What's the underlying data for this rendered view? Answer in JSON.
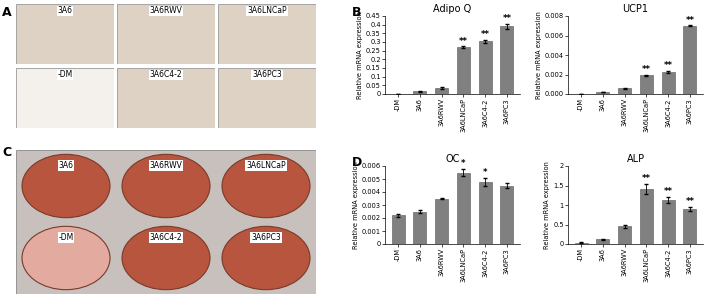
{
  "panels": [
    {
      "panel_label": "A",
      "type": "image",
      "labels": [
        "3A6",
        "3A6RWV",
        "3A6LNCaP",
        "-DM",
        "3A6C4-2",
        "3A6PC3"
      ]
    },
    {
      "panel_label": "C",
      "type": "image",
      "labels": [
        "3A6",
        "3A6RWV",
        "3A6LNCaP",
        "-DM",
        "3A6C4-2",
        "3A6PC3"
      ]
    }
  ],
  "chart_data": [
    {
      "panel_label": "B",
      "type": "bar",
      "title": "Adipo Q",
      "y_label": "Relative mRNA expression",
      "categories": [
        "-DM",
        "3A6",
        "3A6RWV",
        "3A6LNCaP",
        "3A6C4-2",
        "3A6PC3"
      ],
      "values": [
        0.0,
        0.015,
        0.035,
        0.27,
        0.305,
        0.39
      ],
      "errors": [
        0.0,
        0.003,
        0.005,
        0.005,
        0.008,
        0.015
      ],
      "annotations": [
        null,
        null,
        null,
        "**",
        "**",
        "**"
      ],
      "color": "#808080",
      "ylim": [
        0,
        0.45
      ],
      "yticks": [
        0,
        0.05,
        0.1,
        0.15,
        0.2,
        0.25,
        0.3,
        0.35,
        0.4,
        0.45
      ]
    },
    {
      "type": "bar",
      "title": "UCP1",
      "y_label": "Relative mRNA expression",
      "categories": [
        "-DM",
        "3A6",
        "3A6RWV",
        "3A6LNCaP",
        "3A6C4-2",
        "3A6PC3"
      ],
      "values": [
        0.0,
        0.0002,
        0.0006,
        0.0019,
        0.0023,
        0.007
      ],
      "errors": [
        0.0,
        3e-05,
        5e-05,
        0.0001,
        0.0001,
        5e-05
      ],
      "annotations": [
        null,
        null,
        null,
        "**",
        "**",
        "**"
      ],
      "color": "#808080",
      "ylim": [
        0,
        0.008
      ],
      "yticks": [
        {
          "value": 0,
          "label": "0.000"
        },
        0.002,
        0.004,
        0.006,
        0.008
      ]
    },
    {
      "panel_label": "D",
      "type": "bar",
      "title": "OC",
      "y_label": "Relative mRNA expression",
      "categories": [
        "-DM",
        "3A6",
        "3A6RWV",
        "3A6LNCaP",
        "3A6C4-2",
        "3A6PC3"
      ],
      "values": [
        0.0022,
        0.0025,
        0.0035,
        0.0055,
        0.0048,
        0.0045
      ],
      "errors": [
        0.0001,
        0.00015,
        5e-05,
        0.0003,
        0.0003,
        0.0002
      ],
      "annotations": [
        null,
        null,
        null,
        "*",
        "*",
        null
      ],
      "color": "#808080",
      "ylim": [
        0,
        0.006
      ],
      "yticks": [
        0,
        0.001,
        0.002,
        0.003,
        0.004,
        0.005,
        0.006
      ]
    },
    {
      "type": "bar",
      "title": "ALP",
      "y_label": "Relative mRNA expression",
      "categories": [
        "-DM",
        "3A6",
        "3A6RWV",
        "3A6LNCaP",
        "3A6C4-2",
        "3A6PC3"
      ],
      "values": [
        0.03,
        0.12,
        0.45,
        1.42,
        1.13,
        0.9
      ],
      "errors": [
        0.01,
        0.02,
        0.03,
        0.13,
        0.08,
        0.06
      ],
      "annotations": [
        null,
        null,
        null,
        "**",
        "**",
        "**"
      ],
      "color": "#808080",
      "ylim": [
        0,
        2
      ],
      "yticks": [
        0,
        0.5,
        1,
        1.5,
        2
      ]
    }
  ]
}
